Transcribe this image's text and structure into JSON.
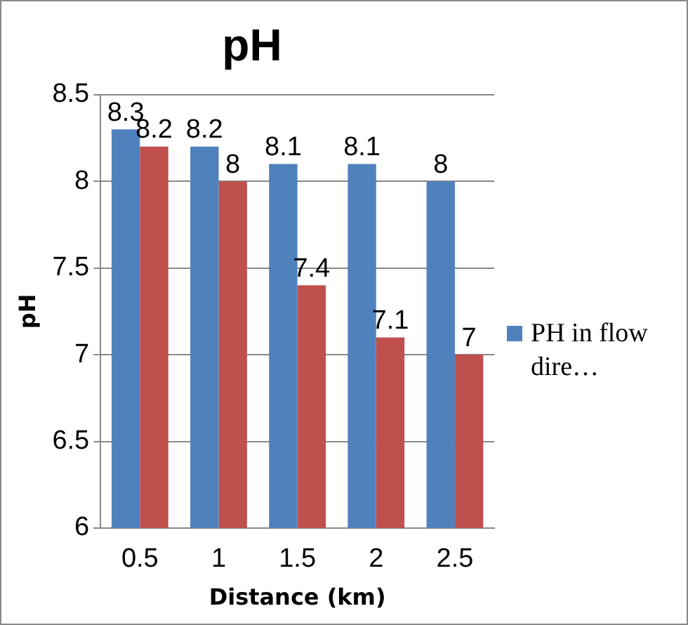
{
  "chart_data": {
    "type": "bar",
    "title": "pH",
    "xlabel": "Distance (km)",
    "ylabel": "pH",
    "categories": [
      "0.5",
      "1",
      "1.5",
      "2",
      "2.5"
    ],
    "series": [
      {
        "name": "PH in flow dire…",
        "color": "#4f81bd",
        "values": [
          8.3,
          8.2,
          8.1,
          8.1,
          8
        ]
      },
      {
        "color": "#c0504d",
        "values": [
          8.2,
          8,
          7.4,
          7.1,
          7
        ]
      }
    ],
    "ylim": [
      6,
      8.5
    ],
    "yticks": [
      6,
      6.5,
      7,
      7.5,
      8,
      8.5
    ],
    "grid": "y",
    "legend": "right",
    "data_labels": true
  }
}
